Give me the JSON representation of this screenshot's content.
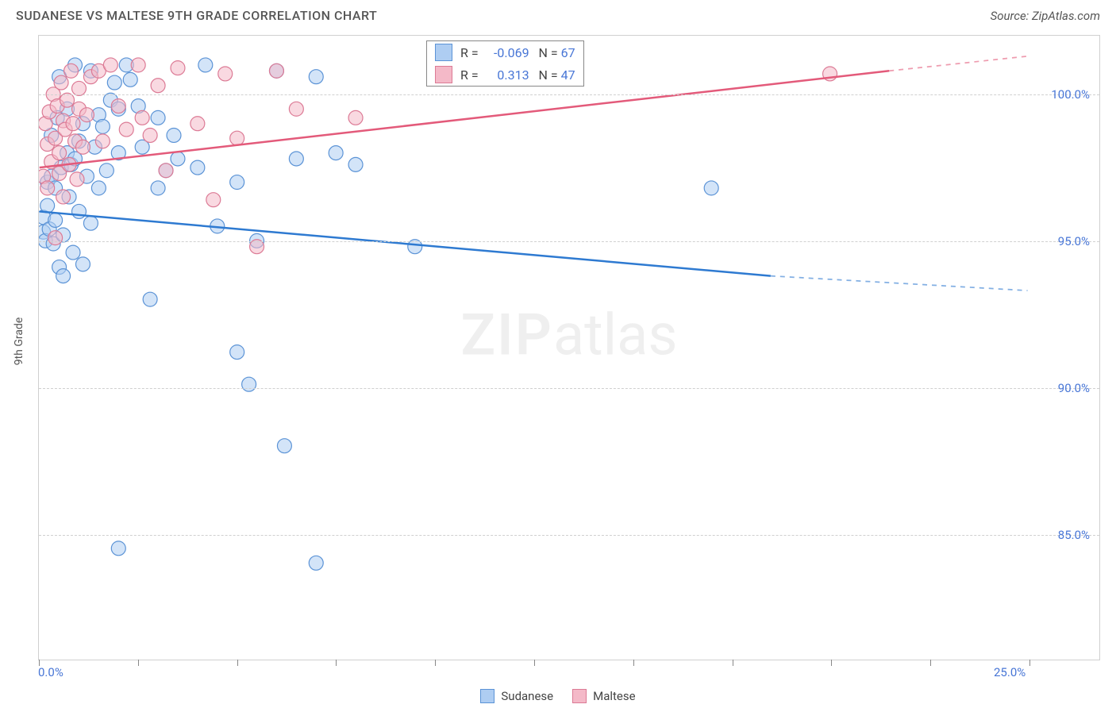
{
  "header": {
    "title": "SUDANESE VS MALTESE 9TH GRADE CORRELATION CHART",
    "source": "Source: ZipAtlas.com"
  },
  "chart": {
    "type": "scatter",
    "y_axis_label": "9th Grade",
    "x_domain": [
      0,
      25
    ],
    "y_domain": [
      82,
      102
    ],
    "x_ticks": [
      0,
      2.5,
      5,
      7.5,
      10,
      12.5,
      15,
      17.5,
      20,
      22.5,
      25
    ],
    "x_tick_labels": {
      "0": "0.0%",
      "25": "25.0%"
    },
    "y_ticks": [
      85,
      90,
      95,
      100
    ],
    "y_tick_labels": {
      "85": "85.0%",
      "90": "90.0%",
      "95": "95.0%",
      "100": "100.0%"
    },
    "background_color": "#ffffff",
    "grid_color": "#d0d0d0",
    "axis_label_color": "#555555",
    "tick_label_color": "#4876d6",
    "tick_label_fontsize": 15,
    "marker_radius": 9,
    "marker_stroke_width": 1.2,
    "line_width": 2.5,
    "watermark": {
      "zip": "ZIP",
      "atlas": "atlas"
    },
    "series": {
      "sudanese": {
        "label": "Sudanese",
        "fill": "#aecdf2",
        "stroke": "#5b93d6",
        "fill_opacity": 0.55,
        "line_color": "#2e7ad1",
        "R": "-0.069",
        "N": "67",
        "trend": {
          "x1": 0,
          "y1": 96.0,
          "x2": 18.5,
          "y2": 93.8,
          "x2_ext": 25,
          "y2_ext": 93.3
        },
        "points": [
          [
            0.1,
            95.8
          ],
          [
            0.1,
            95.3
          ],
          [
            0.15,
            95.0
          ],
          [
            0.2,
            96.2
          ],
          [
            0.2,
            97.0
          ],
          [
            0.25,
            95.4
          ],
          [
            0.3,
            98.6
          ],
          [
            0.3,
            97.2
          ],
          [
            0.35,
            94.9
          ],
          [
            0.4,
            95.7
          ],
          [
            0.4,
            96.8
          ],
          [
            0.45,
            99.2
          ],
          [
            0.5,
            94.1
          ],
          [
            0.5,
            100.6
          ],
          [
            0.55,
            97.5
          ],
          [
            0.6,
            95.2
          ],
          [
            0.6,
            93.8
          ],
          [
            0.7,
            98.0
          ],
          [
            0.7,
            99.5
          ],
          [
            0.75,
            96.5
          ],
          [
            0.8,
            97.6
          ],
          [
            0.85,
            94.6
          ],
          [
            0.9,
            97.8
          ],
          [
            0.9,
            101.0
          ],
          [
            1.0,
            98.4
          ],
          [
            1.0,
            96.0
          ],
          [
            1.1,
            94.2
          ],
          [
            1.1,
            99.0
          ],
          [
            1.2,
            97.2
          ],
          [
            1.3,
            100.8
          ],
          [
            1.3,
            95.6
          ],
          [
            1.4,
            98.2
          ],
          [
            1.5,
            99.3
          ],
          [
            1.5,
            96.8
          ],
          [
            1.6,
            98.9
          ],
          [
            1.7,
            97.4
          ],
          [
            1.8,
            99.8
          ],
          [
            1.9,
            100.4
          ],
          [
            2.0,
            98.0
          ],
          [
            2.0,
            99.5
          ],
          [
            2.2,
            101.0
          ],
          [
            2.3,
            100.5
          ],
          [
            2.5,
            99.6
          ],
          [
            2.6,
            98.2
          ],
          [
            2.8,
            93.0
          ],
          [
            3.0,
            99.2
          ],
          [
            3.0,
            96.8
          ],
          [
            3.2,
            97.4
          ],
          [
            3.4,
            98.6
          ],
          [
            3.5,
            97.8
          ],
          [
            4.0,
            97.5
          ],
          [
            4.2,
            101.0
          ],
          [
            4.5,
            95.5
          ],
          [
            5.0,
            97.0
          ],
          [
            5.0,
            91.2
          ],
          [
            5.3,
            90.1
          ],
          [
            5.5,
            95.0
          ],
          [
            6.0,
            100.8
          ],
          [
            6.2,
            88.0
          ],
          [
            6.5,
            97.8
          ],
          [
            7.0,
            100.6
          ],
          [
            7.5,
            98.0
          ],
          [
            8.0,
            97.6
          ],
          [
            9.5,
            94.8
          ],
          [
            17.0,
            96.8
          ],
          [
            2.0,
            84.5
          ],
          [
            7.0,
            84.0
          ]
        ]
      },
      "maltese": {
        "label": "Maltese",
        "fill": "#f4b9c8",
        "stroke": "#dc7a95",
        "fill_opacity": 0.55,
        "line_color": "#e35a7a",
        "R": "0.313",
        "N": "47",
        "trend": {
          "x1": 0,
          "y1": 97.5,
          "x2": 21.5,
          "y2": 100.8,
          "x2_ext": 25,
          "y2_ext": 101.3
        },
        "points": [
          [
            0.1,
            97.2
          ],
          [
            0.15,
            99.0
          ],
          [
            0.2,
            98.3
          ],
          [
            0.2,
            96.8
          ],
          [
            0.25,
            99.4
          ],
          [
            0.3,
            97.7
          ],
          [
            0.35,
            100.0
          ],
          [
            0.4,
            98.5
          ],
          [
            0.4,
            95.1
          ],
          [
            0.45,
            99.6
          ],
          [
            0.5,
            98.0
          ],
          [
            0.5,
            97.3
          ],
          [
            0.55,
            100.4
          ],
          [
            0.6,
            99.1
          ],
          [
            0.6,
            96.5
          ],
          [
            0.65,
            98.8
          ],
          [
            0.7,
            99.8
          ],
          [
            0.75,
            97.6
          ],
          [
            0.8,
            100.8
          ],
          [
            0.85,
            99.0
          ],
          [
            0.9,
            98.4
          ],
          [
            0.95,
            97.1
          ],
          [
            1.0,
            99.5
          ],
          [
            1.0,
            100.2
          ],
          [
            1.1,
            98.2
          ],
          [
            1.2,
            99.3
          ],
          [
            1.3,
            100.6
          ],
          [
            1.5,
            100.8
          ],
          [
            1.6,
            98.4
          ],
          [
            1.8,
            101.0
          ],
          [
            2.0,
            99.6
          ],
          [
            2.2,
            98.8
          ],
          [
            2.5,
            101.0
          ],
          [
            2.6,
            99.2
          ],
          [
            2.8,
            98.6
          ],
          [
            3.0,
            100.3
          ],
          [
            3.2,
            97.4
          ],
          [
            3.5,
            100.9
          ],
          [
            4.0,
            99.0
          ],
          [
            4.4,
            96.4
          ],
          [
            4.7,
            100.7
          ],
          [
            5.0,
            98.5
          ],
          [
            5.5,
            94.8
          ],
          [
            6.0,
            100.8
          ],
          [
            6.5,
            99.5
          ],
          [
            8.0,
            99.2
          ],
          [
            20.0,
            100.7
          ]
        ]
      }
    },
    "legend": {
      "series_order": [
        "sudanese",
        "maltese"
      ],
      "R_label": "R =",
      "N_label": "N ="
    }
  }
}
